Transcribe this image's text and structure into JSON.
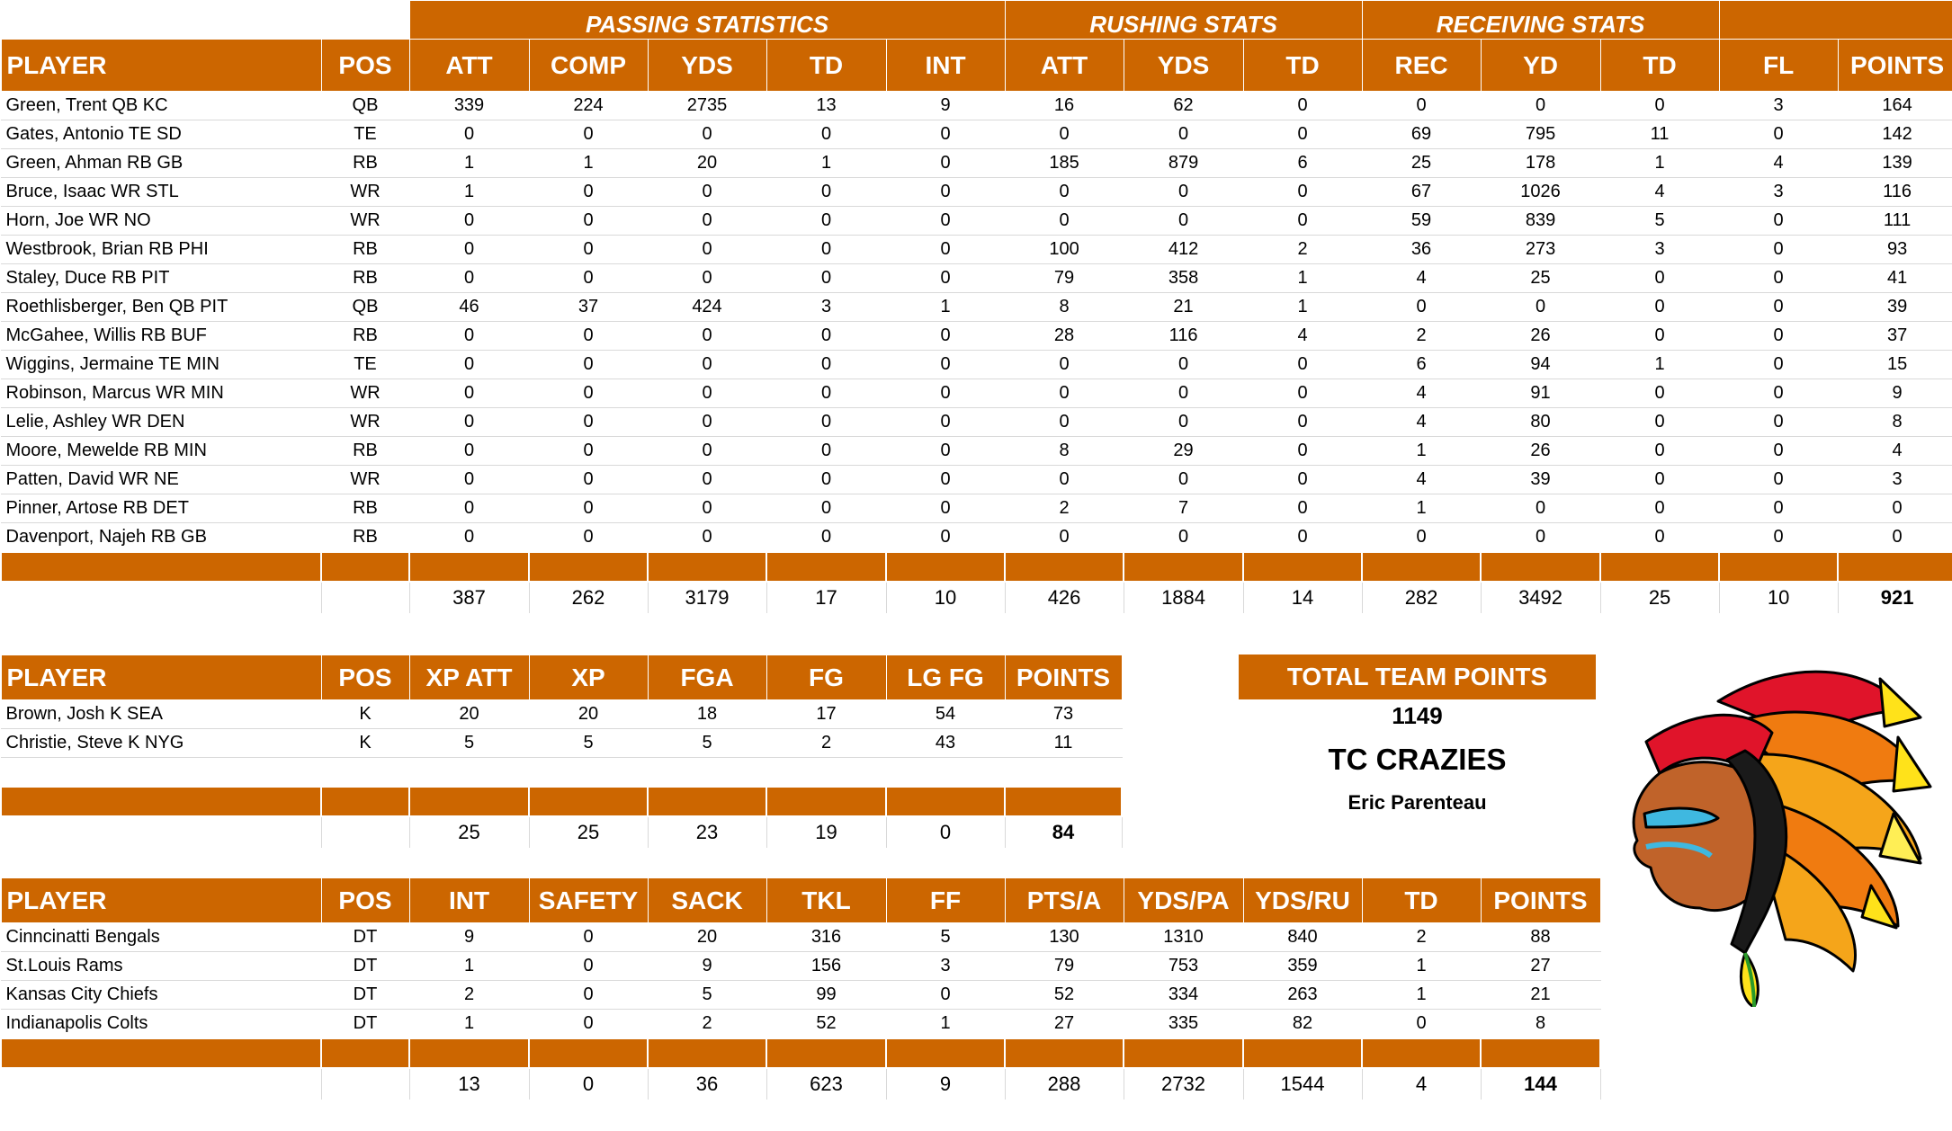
{
  "offense": {
    "group_headers": {
      "passing": "PASSING STATISTICS",
      "rushing": "RUSHING STATS",
      "receiving": "RECEIVING STATS"
    },
    "columns": [
      "PLAYER",
      "POS",
      "ATT",
      "COMP",
      "YDS",
      "TD",
      "INT",
      "ATT",
      "YDS",
      "TD",
      "REC",
      "YD",
      "TD",
      "FL",
      "POINTS"
    ],
    "rows": [
      [
        "Green, Trent QB KC",
        "QB",
        "339",
        "224",
        "2735",
        "13",
        "9",
        "16",
        "62",
        "0",
        "0",
        "0",
        "0",
        "3",
        "164"
      ],
      [
        "Gates, Antonio TE SD",
        "TE",
        "0",
        "0",
        "0",
        "0",
        "0",
        "0",
        "0",
        "0",
        "69",
        "795",
        "11",
        "0",
        "142"
      ],
      [
        "Green, Ahman RB GB",
        "RB",
        "1",
        "1",
        "20",
        "1",
        "0",
        "185",
        "879",
        "6",
        "25",
        "178",
        "1",
        "4",
        "139"
      ],
      [
        "Bruce, Isaac WR STL",
        "WR",
        "1",
        "0",
        "0",
        "0",
        "0",
        "0",
        "0",
        "0",
        "67",
        "1026",
        "4",
        "3",
        "116"
      ],
      [
        "Horn, Joe WR NO",
        "WR",
        "0",
        "0",
        "0",
        "0",
        "0",
        "0",
        "0",
        "0",
        "59",
        "839",
        "5",
        "0",
        "111"
      ],
      [
        "Westbrook, Brian RB PHI",
        "RB",
        "0",
        "0",
        "0",
        "0",
        "0",
        "100",
        "412",
        "2",
        "36",
        "273",
        "3",
        "0",
        "93"
      ],
      [
        "Staley, Duce RB PIT",
        "RB",
        "0",
        "0",
        "0",
        "0",
        "0",
        "79",
        "358",
        "1",
        "4",
        "25",
        "0",
        "0",
        "41"
      ],
      [
        "Roethlisberger, Ben QB PIT",
        "QB",
        "46",
        "37",
        "424",
        "3",
        "1",
        "8",
        "21",
        "1",
        "0",
        "0",
        "0",
        "0",
        "39"
      ],
      [
        "McGahee, Willis RB BUF",
        "RB",
        "0",
        "0",
        "0",
        "0",
        "0",
        "28",
        "116",
        "4",
        "2",
        "26",
        "0",
        "0",
        "37"
      ],
      [
        "Wiggins, Jermaine TE MIN",
        "TE",
        "0",
        "0",
        "0",
        "0",
        "0",
        "0",
        "0",
        "0",
        "6",
        "94",
        "1",
        "0",
        "15"
      ],
      [
        "Robinson, Marcus WR MIN",
        "WR",
        "0",
        "0",
        "0",
        "0",
        "0",
        "0",
        "0",
        "0",
        "4",
        "91",
        "0",
        "0",
        "9"
      ],
      [
        "Lelie, Ashley WR DEN",
        "WR",
        "0",
        "0",
        "0",
        "0",
        "0",
        "0",
        "0",
        "0",
        "4",
        "80",
        "0",
        "0",
        "8"
      ],
      [
        "Moore, Mewelde RB MIN",
        "RB",
        "0",
        "0",
        "0",
        "0",
        "0",
        "8",
        "29",
        "0",
        "1",
        "26",
        "0",
        "0",
        "4"
      ],
      [
        "Patten, David WR NE",
        "WR",
        "0",
        "0",
        "0",
        "0",
        "0",
        "0",
        "0",
        "0",
        "4",
        "39",
        "0",
        "0",
        "3"
      ],
      [
        "Pinner, Artose RB DET",
        "RB",
        "0",
        "0",
        "0",
        "0",
        "0",
        "2",
        "7",
        "0",
        "1",
        "0",
        "0",
        "0",
        "0"
      ],
      [
        "Davenport, Najeh RB GB",
        "RB",
        "0",
        "0",
        "0",
        "0",
        "0",
        "0",
        "0",
        "0",
        "0",
        "0",
        "0",
        "0",
        "0"
      ]
    ],
    "totals": [
      "",
      "",
      "387",
      "262",
      "3179",
      "17",
      "10",
      "426",
      "1884",
      "14",
      "282",
      "3492",
      "25",
      "10",
      "921"
    ]
  },
  "kicking": {
    "columns": [
      "PLAYER",
      "POS",
      "XP ATT",
      "XP",
      "FGA",
      "FG",
      "LG FG",
      "POINTS"
    ],
    "rows": [
      [
        "Brown, Josh K SEA",
        "K",
        "20",
        "20",
        "18",
        "17",
        "54",
        "73"
      ],
      [
        "Christie, Steve K NYG",
        "K",
        "5",
        "5",
        "5",
        "2",
        "43",
        "11"
      ]
    ],
    "totals": [
      "",
      "",
      "25",
      "25",
      "23",
      "19",
      "0",
      "84"
    ]
  },
  "defense": {
    "columns": [
      "PLAYER",
      "POS",
      "INT",
      "SAFETY",
      "SACK",
      "TKL",
      "FF",
      "PTS/A",
      "YDS/PA",
      "YDS/RU",
      "TD",
      "POINTS"
    ],
    "rows": [
      [
        "Cinncinatti Bengals",
        "DT",
        "9",
        "0",
        "20",
        "316",
        "5",
        "130",
        "1310",
        "840",
        "2",
        "88"
      ],
      [
        "St.Louis Rams",
        "DT",
        "1",
        "0",
        "9",
        "156",
        "3",
        "79",
        "753",
        "359",
        "1",
        "27"
      ],
      [
        "Kansas City Chiefs",
        "DT",
        "2",
        "0",
        "5",
        "99",
        "0",
        "52",
        "334",
        "263",
        "1",
        "21"
      ],
      [
        "Indianapolis Colts",
        "DT",
        "1",
        "0",
        "2",
        "52",
        "1",
        "27",
        "335",
        "82",
        "0",
        "8"
      ]
    ],
    "totals": [
      "",
      "",
      "13",
      "0",
      "36",
      "623",
      "9",
      "288",
      "2732",
      "1544",
      "4",
      "144"
    ]
  },
  "team": {
    "total_label": "TOTAL TEAM POINTS",
    "total_points": "1149",
    "team_name": "TC CRAZIES",
    "owner": "Eric Parenteau"
  },
  "colors": {
    "header_bg": "#cc6600",
    "header_text": "#ffffff"
  },
  "logo_icon": "chief-headdress-logo-icon"
}
